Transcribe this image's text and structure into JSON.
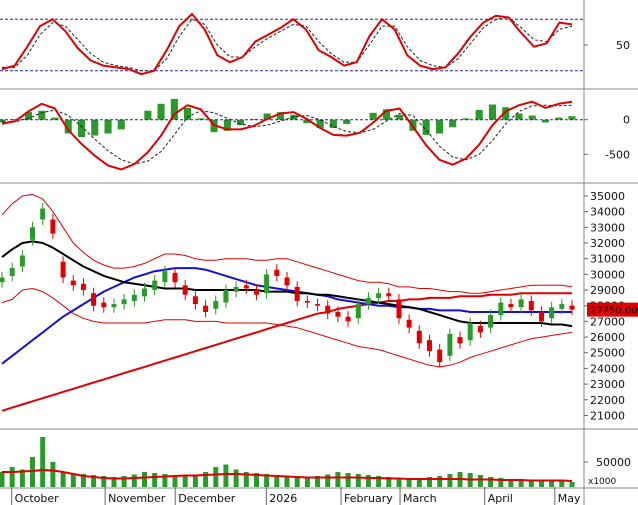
{
  "chart_data": [
    {
      "type": "line",
      "panel": "stochastic",
      "y_ticks": [
        {
          "value": 50,
          "label": "50"
        }
      ],
      "ylim": [
        0,
        100
      ],
      "reference_lines": [
        80,
        20
      ],
      "colors": {
        "main": "#e00000",
        "signal": "#222222",
        "reference": "#2020c0"
      },
      "series": [
        {
          "values": [
            22,
            26,
            48,
            72,
            80,
            66,
            46,
            32,
            26,
            24,
            22,
            16,
            20,
            44,
            72,
            86,
            68,
            38,
            30,
            36,
            54,
            62,
            70,
            80,
            68,
            44,
            36,
            26,
            30,
            60,
            80,
            68,
            38,
            26,
            22,
            24,
            40,
            60,
            76,
            84,
            82,
            64,
            48,
            52,
            76,
            74
          ]
        },
        {
          "values": [
            24,
            24,
            38,
            62,
            76,
            72,
            56,
            40,
            30,
            26,
            24,
            20,
            20,
            34,
            60,
            80,
            74,
            50,
            36,
            36,
            48,
            58,
            66,
            74,
            72,
            54,
            40,
            30,
            30,
            50,
            72,
            72,
            48,
            32,
            26,
            24,
            34,
            52,
            70,
            80,
            82,
            70,
            56,
            54,
            68,
            72
          ]
        }
      ]
    },
    {
      "type": "bar",
      "panel": "macd",
      "y_ticks": [
        {
          "value": 0,
          "label": "0"
        },
        {
          "value": -500,
          "label": "-500"
        }
      ],
      "ylim": [
        -900,
        400
      ],
      "colors": {
        "macd": "#e00000",
        "signal": "#222222",
        "hist": "#2a9a2a",
        "zero": "#2020c0"
      },
      "series": [
        {
          "name": "macd",
          "values": [
            -60,
            -20,
            120,
            230,
            160,
            -150,
            -350,
            -520,
            -660,
            -720,
            -640,
            -470,
            -230,
            80,
            210,
            150,
            -80,
            -140,
            -140,
            -90,
            10,
            90,
            110,
            10,
            -120,
            -220,
            -230,
            -190,
            -40,
            130,
            160,
            -100,
            -370,
            -580,
            -650,
            -560,
            -360,
            -80,
            120,
            210,
            260,
            170,
            230,
            260
          ]
        },
        {
          "name": "signal",
          "values": [
            -30,
            -30,
            20,
            100,
            140,
            60,
            -100,
            -280,
            -450,
            -580,
            -640,
            -600,
            -460,
            -220,
            40,
            130,
            100,
            20,
            -60,
            -100,
            -80,
            -20,
            40,
            60,
            0,
            -100,
            -170,
            -190,
            -140,
            -20,
            90,
            60,
            -150,
            -380,
            -540,
            -580,
            -500,
            -300,
            -60,
            120,
            200,
            210,
            200,
            210
          ]
        },
        {
          "name": "hist",
          "values": [
            -40,
            10,
            110,
            130,
            30,
            -200,
            -250,
            -230,
            -200,
            -140,
            0,
            130,
            230,
            300,
            170,
            20,
            -180,
            -160,
            -80,
            10,
            90,
            110,
            70,
            -50,
            -120,
            -120,
            -60,
            0,
            100,
            150,
            70,
            -160,
            -220,
            -200,
            -110,
            20,
            140,
            220,
            180,
            90,
            60,
            -40,
            30,
            50
          ]
        }
      ]
    },
    {
      "type": "candlestick",
      "panel": "price",
      "y_ticks": [
        {
          "value": 21000,
          "label": "21000"
        },
        {
          "value": 22000,
          "label": "22000"
        },
        {
          "value": 23000,
          "label": "23000"
        },
        {
          "value": 24000,
          "label": "24000"
        },
        {
          "value": 25000,
          "label": "25000"
        },
        {
          "value": 26000,
          "label": "26000"
        },
        {
          "value": 27000,
          "label": "27000"
        },
        {
          "value": 28000,
          "label": "28000"
        },
        {
          "value": 29000,
          "label": "29000"
        },
        {
          "value": 30000,
          "label": "30000"
        },
        {
          "value": 31000,
          "label": "31000"
        },
        {
          "value": 32000,
          "label": "32000"
        },
        {
          "value": 33000,
          "label": "33000"
        },
        {
          "value": 34000,
          "label": "34000"
        },
        {
          "value": 35000,
          "label": "35000"
        }
      ],
      "ylim": [
        20200,
        35700
      ],
      "last_price_label": "27750.00",
      "last_price": 27750,
      "colors": {
        "up": "#2a9a2a",
        "down": "#e00000",
        "ma_black": "#000000",
        "ma_blue": "#1010e0",
        "ma_red": "#e00000",
        "bands": "#e00000",
        "tag_bg": "#e00000"
      },
      "closes": [
        29800,
        30400,
        31200,
        33000,
        34200,
        32600,
        29800,
        29300,
        29000,
        28000,
        27900,
        28100,
        28400,
        28700,
        29100,
        29600,
        30200,
        29500,
        28700,
        28100,
        27600,
        28300,
        29000,
        29200,
        29100,
        28700,
        30000,
        29900,
        29300,
        28300,
        28200,
        28000,
        27500,
        27300,
        27000,
        28100,
        28500,
        28800,
        28600,
        27200,
        26600,
        25600,
        25100,
        24400,
        26200,
        25600,
        26900,
        26300,
        27400,
        28200,
        27900,
        28400,
        27700,
        27000,
        27900,
        28100,
        27750
      ],
      "opens": [
        29500,
        29900,
        30500,
        32200,
        33500,
        33500,
        30800,
        29600,
        29400,
        28800,
        28200,
        27900,
        28100,
        28300,
        28600,
        29000,
        29500,
        30100,
        29300,
        28600,
        28000,
        27800,
        28200,
        28900,
        29300,
        29000,
        28800,
        30300,
        29800,
        29200,
        28300,
        28100,
        28000,
        27600,
        27300,
        27200,
        28100,
        28500,
        28800,
        28400,
        27100,
        26400,
        25800,
        25200,
        24800,
        26000,
        25800,
        26700,
        26600,
        27400,
        28100,
        27900,
        28300,
        27600,
        27200,
        27800,
        28000
      ],
      "series": [
        {
          "name": "ma_black",
          "values": [
            31100,
            31600,
            32000,
            32100,
            32000,
            31700,
            31300,
            30900,
            30500,
            30200,
            29900,
            29700,
            29500,
            29400,
            29300,
            29200,
            29100,
            29100,
            29100,
            29000,
            29000,
            29000,
            29000,
            29000,
            29000,
            29000,
            28900,
            28900,
            28900,
            28800,
            28800,
            28700,
            28700,
            28600,
            28500,
            28400,
            28300,
            28200,
            28100,
            28000,
            27900,
            27800,
            27600,
            27400,
            27200,
            27000,
            26900,
            26900,
            26900,
            26900,
            26900,
            26900,
            26900,
            26900,
            26800,
            26800,
            26700
          ]
        },
        {
          "name": "ma_blue",
          "values": [
            24300,
            24800,
            25300,
            25800,
            26300,
            26800,
            27300,
            27700,
            28100,
            28500,
            28900,
            29200,
            29500,
            29800,
            30000,
            30200,
            30300,
            30400,
            30400,
            30400,
            30300,
            30100,
            29900,
            29700,
            29500,
            29300,
            29200,
            29100,
            29000,
            28900,
            28800,
            28700,
            28600,
            28400,
            28300,
            28200,
            28100,
            28000,
            28000,
            27900,
            27900,
            27800,
            27800,
            27700,
            27700,
            27700,
            27600,
            27600,
            27600,
            27600,
            27600,
            27600,
            27600,
            27600,
            27600,
            27600,
            27600
          ]
        },
        {
          "name": "ma_red",
          "values": [
            21300,
            21500,
            21700,
            21900,
            22100,
            22300,
            22500,
            22700,
            22900,
            23100,
            23300,
            23500,
            23700,
            23900,
            24100,
            24300,
            24500,
            24700,
            24900,
            25100,
            25300,
            25500,
            25700,
            25900,
            26100,
            26300,
            26500,
            26700,
            26900,
            27100,
            27300,
            27500,
            27600,
            27800,
            27900,
            28000,
            28100,
            28200,
            28300,
            28300,
            28400,
            28400,
            28500,
            28500,
            28500,
            28600,
            28600,
            28600,
            28700,
            28700,
            28700,
            28800,
            28800,
            28800,
            28800,
            28800,
            28800
          ]
        },
        {
          "name": "band_upper",
          "values": [
            33800,
            34500,
            35000,
            35100,
            34800,
            34000,
            33000,
            32000,
            31400,
            30900,
            30600,
            30400,
            30400,
            30500,
            30700,
            31000,
            31300,
            31300,
            31200,
            31000,
            30900,
            30900,
            31000,
            31000,
            31000,
            30900,
            30900,
            31000,
            31000,
            30800,
            30600,
            30400,
            30200,
            30000,
            29800,
            29600,
            29500,
            29500,
            29400,
            29200,
            29200,
            29100,
            29100,
            29000,
            28900,
            28900,
            28800,
            28800,
            28900,
            29000,
            29100,
            29200,
            29300,
            29300,
            29300,
            29300,
            29200
          ]
        },
        {
          "name": "band_lower",
          "values": [
            28200,
            28400,
            29000,
            29100,
            28900,
            28500,
            28000,
            27500,
            27200,
            27000,
            26900,
            26900,
            26900,
            26900,
            26900,
            27000,
            27100,
            27100,
            27100,
            27000,
            27000,
            27000,
            26900,
            26900,
            26900,
            26900,
            26900,
            26800,
            26700,
            26600,
            26400,
            26200,
            26000,
            25800,
            25600,
            25400,
            25300,
            25200,
            25000,
            24800,
            24600,
            24400,
            24200,
            24100,
            24200,
            24400,
            24700,
            24900,
            25100,
            25300,
            25500,
            25700,
            25900,
            26000,
            26100,
            26200,
            26300
          ]
        }
      ]
    },
    {
      "type": "bar",
      "panel": "volume",
      "y_ticks": [
        {
          "value": 50000,
          "label": "50000"
        }
      ],
      "unit_label": "x1000",
      "ylim": [
        0,
        110000
      ],
      "colors": {
        "bars": "#2a9a2a",
        "ma": "#e00000"
      },
      "series": [
        {
          "name": "volume",
          "values": [
            30000,
            40000,
            35000,
            60000,
            100000,
            50000,
            30000,
            28000,
            26000,
            24000,
            22000,
            20000,
            22000,
            25000,
            30000,
            28000,
            26000,
            24000,
            22000,
            25000,
            30000,
            40000,
            45000,
            35000,
            30000,
            28000,
            26000,
            24000,
            22000,
            20000,
            18000,
            22000,
            25000,
            30000,
            28000,
            26000,
            24000,
            22000,
            20000,
            18000,
            16000,
            18000,
            20000,
            22000,
            26000,
            30000,
            28000,
            24000,
            20000,
            18000,
            16000,
            15000,
            14000,
            13000,
            12000,
            11000,
            10000
          ]
        },
        {
          "name": "ma",
          "values": [
            30000,
            30000,
            31000,
            32000,
            34000,
            33000,
            30000,
            26000,
            22000,
            20000,
            18000,
            17000,
            17000,
            18000,
            19000,
            20000,
            21000,
            22000,
            23000,
            23000,
            24000,
            25000,
            26000,
            26000,
            25000,
            24000,
            23000,
            22000,
            21000,
            20000,
            19000,
            19000,
            19000,
            19000,
            19000,
            19000,
            18000,
            18000,
            17000,
            17000,
            16000,
            16000,
            16000,
            16000,
            16000,
            16000,
            15000,
            15000,
            15000,
            14000,
            14000,
            14000,
            13000,
            13000,
            13000,
            13000,
            12000
          ]
        }
      ],
      "x_labels": [
        {
          "label": "October",
          "pos": 0.02
        },
        {
          "label": "November",
          "pos": 0.18
        },
        {
          "label": "December",
          "pos": 0.3
        },
        {
          "label": "2026",
          "pos": 0.456
        },
        {
          "label": "February",
          "pos": 0.584
        },
        {
          "label": "March",
          "pos": 0.685
        },
        {
          "label": "April",
          "pos": 0.83
        },
        {
          "label": "May",
          "pos": 0.95
        }
      ]
    }
  ]
}
